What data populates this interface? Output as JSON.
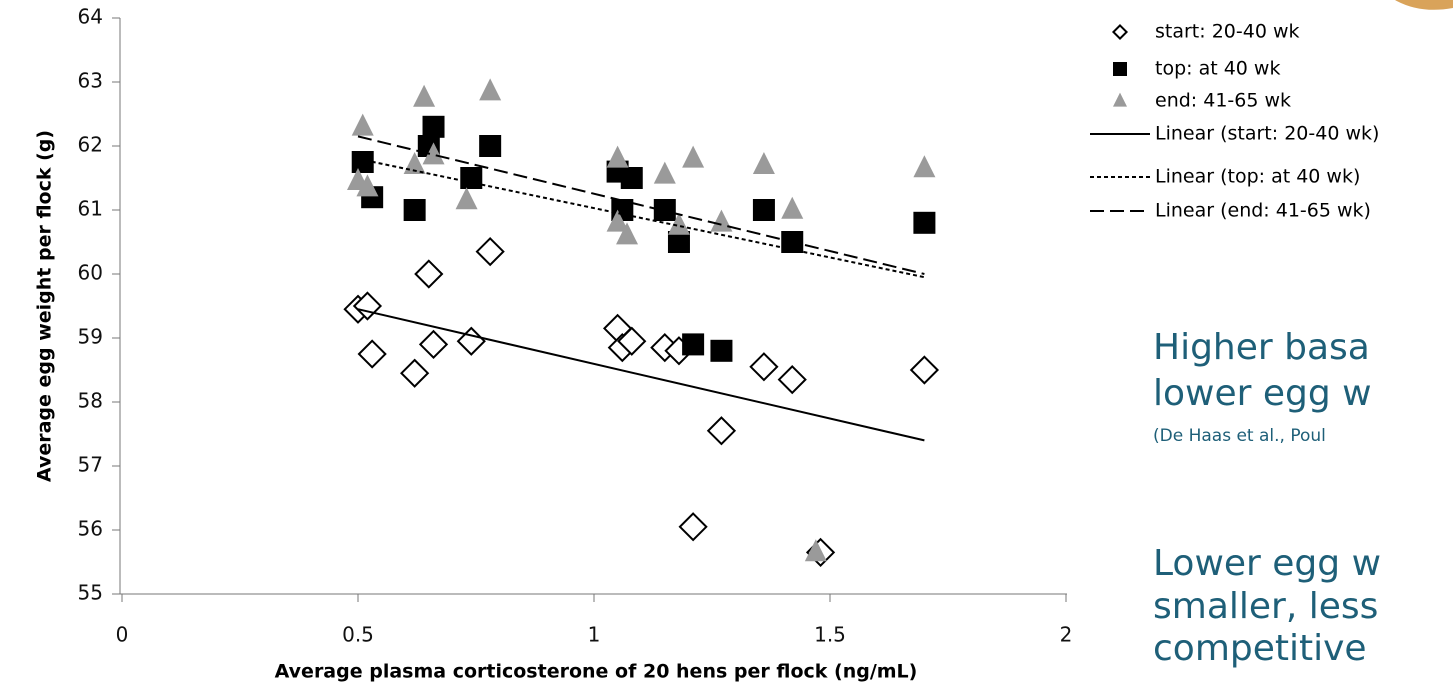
{
  "chart_data": {
    "type": "scatter",
    "xlabel": "Average plasma corticosterone of 20 hens per flock (ng/mL)",
    "ylabel": "Average egg weight per flock (g)",
    "xlim": [
      0,
      2
    ],
    "xticks": [
      0,
      0.5,
      1,
      1.5,
      2
    ],
    "ylim": [
      55,
      64
    ],
    "yticks": [
      55,
      56,
      57,
      58,
      59,
      60,
      61,
      62,
      63,
      64
    ],
    "series": [
      {
        "name": "start: 20-40 wk",
        "type": "scatter",
        "marker": "diamond",
        "color": "#000000",
        "x": [
          0.5,
          0.52,
          0.53,
          0.62,
          0.65,
          0.66,
          0.74,
          0.78,
          1.05,
          1.06,
          1.08,
          1.15,
          1.18,
          1.21,
          1.27,
          1.36,
          1.42,
          1.48,
          1.7
        ],
        "values": [
          59.45,
          59.5,
          58.75,
          58.45,
          60.0,
          58.9,
          58.95,
          60.35,
          59.15,
          58.85,
          58.95,
          58.85,
          58.8,
          56.05,
          57.55,
          58.55,
          58.35,
          55.65,
          58.5
        ]
      },
      {
        "name": "top: at 40 wk",
        "type": "scatter",
        "marker": "square",
        "color": "#000000",
        "x": [
          0.51,
          0.53,
          0.62,
          0.65,
          0.66,
          0.74,
          0.78,
          1.05,
          1.06,
          1.08,
          1.15,
          1.18,
          1.21,
          1.27,
          1.36,
          1.42,
          1.7
        ],
        "values": [
          61.75,
          61.2,
          61.0,
          62.0,
          62.3,
          61.5,
          62.0,
          61.6,
          61.0,
          61.5,
          61.0,
          60.5,
          58.9,
          58.8,
          61.0,
          60.5,
          60.8
        ]
      },
      {
        "name": "end: 41-65 wk",
        "type": "scatter",
        "marker": "triangle",
        "color": "#9a9a9a",
        "x": [
          0.51,
          0.5,
          0.52,
          0.62,
          0.64,
          0.66,
          0.73,
          0.78,
          1.05,
          1.05,
          1.07,
          1.15,
          1.18,
          1.21,
          1.27,
          1.36,
          1.42,
          1.47,
          1.7
        ],
        "values": [
          62.3,
          61.45,
          61.35,
          61.7,
          62.75,
          61.85,
          61.15,
          62.85,
          61.8,
          60.8,
          60.6,
          61.55,
          60.75,
          61.8,
          60.8,
          61.7,
          61.0,
          55.65,
          61.65
        ]
      },
      {
        "name": "Linear (start: 20-40 wk)",
        "type": "line",
        "dash": "solid",
        "color": "#000000",
        "x": [
          0.5,
          1.7
        ],
        "values": [
          59.45,
          57.4
        ]
      },
      {
        "name": "Linear (top: at 40 wk)",
        "type": "line",
        "dash": "dotted",
        "color": "#000000",
        "x": [
          0.5,
          1.7
        ],
        "values": [
          61.8,
          59.95
        ]
      },
      {
        "name": "Linear (end: 41-65 wk)",
        "type": "line",
        "dash": "dashed",
        "color": "#000000",
        "x": [
          0.5,
          1.7
        ],
        "values": [
          62.15,
          60.0
        ]
      }
    ],
    "annotations": [
      "Higher basa",
      "lower egg w",
      "(De Haas et al., Poul",
      "Lower egg w",
      "smaller, less",
      "competitive"
    ]
  }
}
